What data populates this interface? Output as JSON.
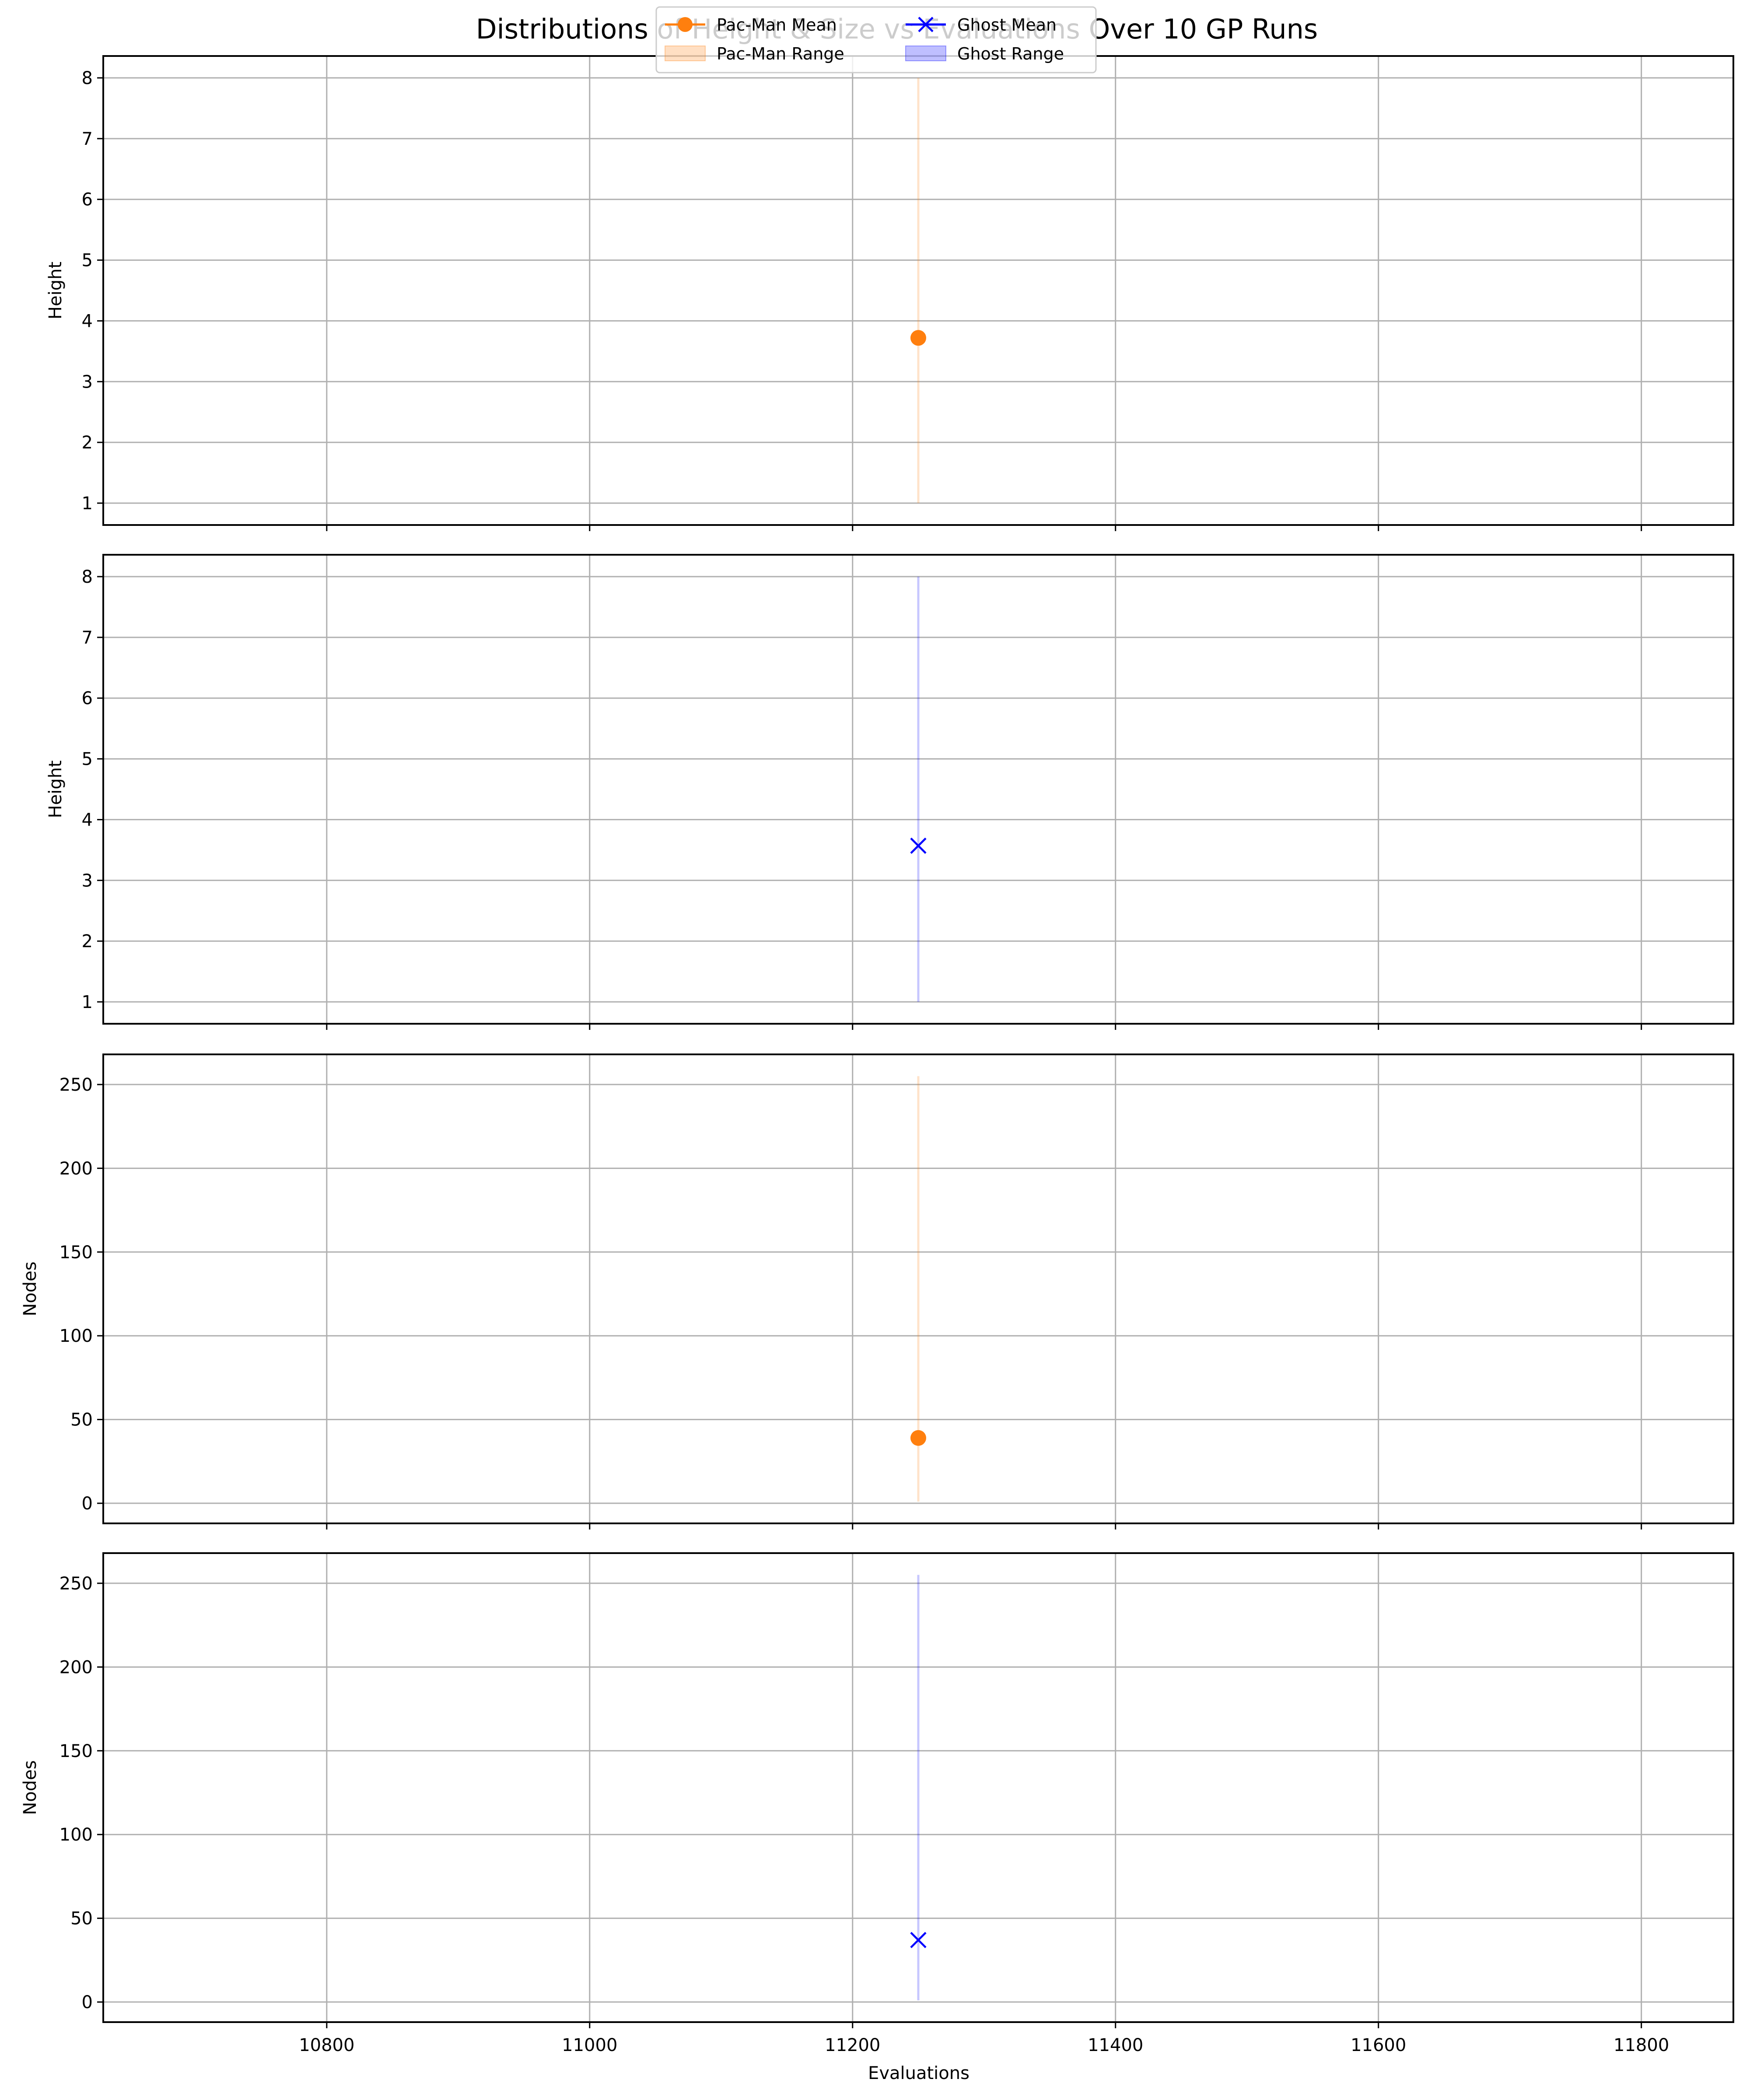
{
  "chart_data": {
    "type": "line",
    "title": "Distributions of Height & Size vs Evaluations Over 10 GP Runs",
    "xlabel": "Evaluations",
    "xlim": [
      10630,
      11870
    ],
    "xticks": [
      10800,
      11000,
      11200,
      11400,
      11600,
      11800
    ],
    "grid": true,
    "legend_position": "top-center",
    "legend": [
      {
        "label": "Pac-Man Mean",
        "kind": "line-marker",
        "marker": "circle",
        "color": "#ff7f0e"
      },
      {
        "label": "Ghost Mean",
        "kind": "line-marker",
        "marker": "x",
        "color": "#0000ff"
      },
      {
        "label": "Pac-Man Range",
        "kind": "patch",
        "color": "#ff7f0e"
      },
      {
        "label": "Ghost Range",
        "kind": "patch",
        "color": "#0000ff"
      }
    ],
    "panels": [
      {
        "ylabel": "Height",
        "ylim": [
          0.64,
          8.36
        ],
        "yticks": [
          1,
          2,
          3,
          4,
          5,
          6,
          7,
          8
        ],
        "series": [
          {
            "name": "Pac-Man",
            "x": [
              11250
            ],
            "mean": [
              3.72
            ],
            "min": [
              1
            ],
            "max": [
              8
            ],
            "marker": "circle",
            "color": "#ff7f0e"
          }
        ]
      },
      {
        "ylabel": "Height",
        "ylim": [
          0.64,
          8.36
        ],
        "yticks": [
          1,
          2,
          3,
          4,
          5,
          6,
          7,
          8
        ],
        "series": [
          {
            "name": "Ghost",
            "x": [
              11250
            ],
            "mean": [
              3.57
            ],
            "min": [
              1
            ],
            "max": [
              8
            ],
            "marker": "x",
            "color": "#0000ff"
          }
        ]
      },
      {
        "ylabel": "Nodes",
        "ylim": [
          -12,
          268
        ],
        "yticks": [
          0,
          50,
          100,
          150,
          200,
          250
        ],
        "series": [
          {
            "name": "Pac-Man",
            "x": [
              11250
            ],
            "mean": [
              39
            ],
            "min": [
              1
            ],
            "max": [
              255
            ],
            "marker": "circle",
            "color": "#ff7f0e"
          }
        ]
      },
      {
        "ylabel": "Nodes",
        "ylim": [
          -12,
          268
        ],
        "yticks": [
          0,
          50,
          100,
          150,
          200,
          250
        ],
        "series": [
          {
            "name": "Ghost",
            "x": [
              11250
            ],
            "mean": [
              37
            ],
            "min": [
              1
            ],
            "max": [
              255
            ],
            "marker": "x",
            "color": "#0000ff"
          }
        ]
      }
    ]
  }
}
